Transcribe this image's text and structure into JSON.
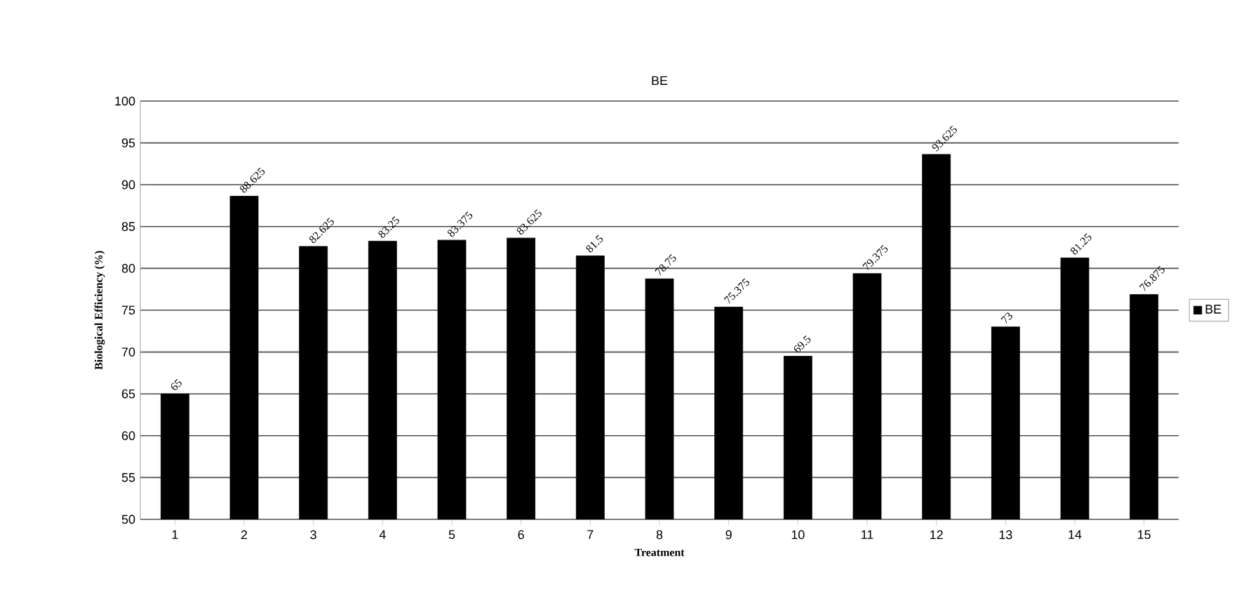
{
  "chart_data": {
    "type": "bar",
    "title": "BE",
    "xlabel": "Treatment",
    "ylabel": "Biological Efficiency (%)",
    "categories": [
      "1",
      "2",
      "3",
      "4",
      "5",
      "6",
      "7",
      "8",
      "9",
      "10",
      "11",
      "12",
      "13",
      "14",
      "15"
    ],
    "series": [
      {
        "name": "BE",
        "color": "#000000",
        "values": [
          65,
          88.625,
          82.625,
          83.25,
          83.375,
          83.625,
          81.5,
          78.75,
          75.375,
          69.5,
          79.375,
          93.625,
          73,
          81.25,
          76.875
        ]
      }
    ],
    "ylim": [
      50,
      100
    ],
    "yticks": [
      50,
      55,
      60,
      65,
      70,
      75,
      80,
      85,
      90,
      95,
      100
    ],
    "grid": "y",
    "legend": "right",
    "data_labels": true
  }
}
